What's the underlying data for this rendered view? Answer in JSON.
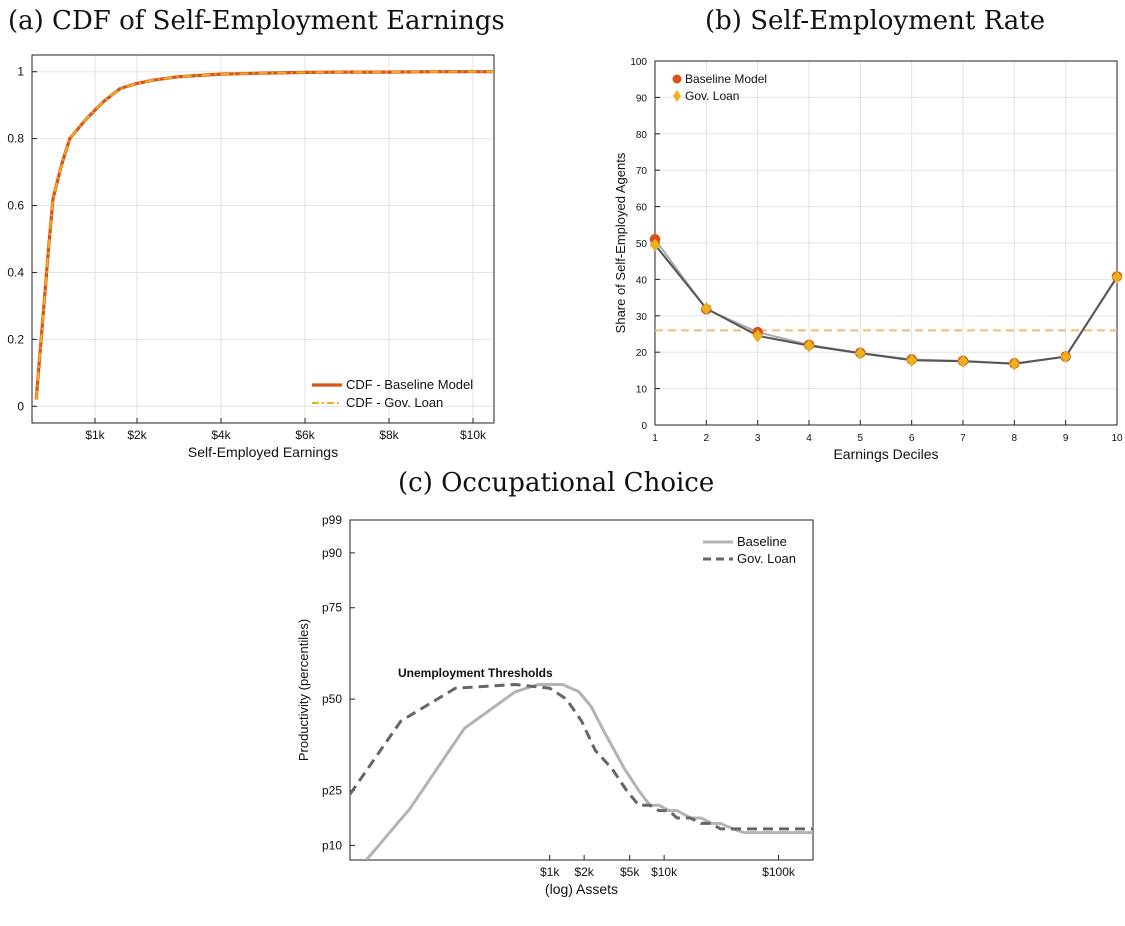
{
  "panel_titles": {
    "a": "(a) CDF of Self-Employment Earnings",
    "b": "(b) Self-Employment Rate",
    "c": "(c) Occupational Choice"
  },
  "chart_data": [
    {
      "id": "a",
      "type": "line",
      "title": "(a) CDF of Self-Employment Earnings",
      "xlabel": "Self-Employed Earnings",
      "ylabel": "",
      "xlim": [
        -500,
        10500
      ],
      "ylim": [
        -0.05,
        1.05
      ],
      "x_ticks": [
        1000,
        2000,
        4000,
        6000,
        8000,
        10000
      ],
      "x_tick_labels": [
        "$1k",
        "$2k",
        "$4k",
        "$6k",
        "$8k",
        "$10k"
      ],
      "y_ticks": [
        0,
        0.2,
        0.4,
        0.6,
        0.8,
        1
      ],
      "y_tick_labels": [
        "0",
        "0.2",
        "0.4",
        "0.6",
        "0.8",
        "1"
      ],
      "grid": true,
      "legend": "bottom-right",
      "series": [
        {
          "name": "CDF - Baseline Model",
          "color": "#d95319",
          "style": "solid",
          "x": [
            -400,
            -250,
            -100,
            0,
            200,
            400,
            800,
            1200,
            1600,
            2000,
            2400,
            3000,
            3600,
            4000,
            5000,
            6000,
            7000,
            8000,
            9000,
            10000,
            10500
          ],
          "y": [
            0.02,
            0.25,
            0.48,
            0.62,
            0.72,
            0.8,
            0.86,
            0.91,
            0.95,
            0.965,
            0.975,
            0.985,
            0.99,
            0.993,
            0.996,
            0.998,
            0.999,
            0.999,
            1.0,
            1.0,
            1.0
          ]
        },
        {
          "name": "CDF - Gov. Loan",
          "color": "#edb120",
          "style": "dash-dot",
          "x": [
            -400,
            -250,
            -100,
            0,
            200,
            400,
            800,
            1200,
            1600,
            2000,
            2400,
            3000,
            3600,
            4000,
            5000,
            6000,
            7000,
            8000,
            9000,
            10000,
            10500
          ],
          "y": [
            0.02,
            0.25,
            0.48,
            0.62,
            0.72,
            0.8,
            0.86,
            0.91,
            0.95,
            0.965,
            0.975,
            0.985,
            0.99,
            0.993,
            0.996,
            0.998,
            0.999,
            0.999,
            1.0,
            1.0,
            1.0
          ]
        }
      ]
    },
    {
      "id": "b",
      "type": "line",
      "title": "(b) Self-Employment Rate",
      "xlabel": "Earnings Deciles",
      "ylabel": "Share of Self-Employed Agents",
      "xlim": [
        1,
        10
      ],
      "ylim": [
        0,
        100
      ],
      "x_ticks": [
        1,
        2,
        3,
        4,
        5,
        6,
        7,
        8,
        9,
        10
      ],
      "x_tick_labels": [
        "1",
        "2",
        "3",
        "4",
        "5",
        "6",
        "7",
        "8",
        "9",
        "10"
      ],
      "y_ticks": [
        0,
        10,
        20,
        30,
        40,
        50,
        60,
        70,
        80,
        90,
        100
      ],
      "y_tick_labels": [
        "0",
        "10",
        "20",
        "30",
        "40",
        "50",
        "60",
        "70",
        "80",
        "90",
        "100"
      ],
      "grid": true,
      "legend": "top-left",
      "reference_line": {
        "y": 26,
        "color": "#f5b871",
        "style": "dashed"
      },
      "series": [
        {
          "name": "Baseline Model",
          "color": "#d95319",
          "line_color": "#aaaaaa",
          "marker": "circle",
          "x": [
            1,
            2,
            3,
            4,
            5,
            6,
            7,
            8,
            9,
            10
          ],
          "y": [
            51,
            31.8,
            25.5,
            22,
            19.8,
            18,
            17.6,
            16.9,
            18.8,
            40.8
          ]
        },
        {
          "name": "Gov. Loan",
          "color": "#edb120",
          "line_color": "#555555",
          "marker": "diamond",
          "x": [
            1,
            2,
            3,
            4,
            5,
            6,
            7,
            8,
            9,
            10
          ],
          "y": [
            49.5,
            32,
            24.5,
            21.8,
            19.7,
            17.8,
            17.5,
            16.8,
            18.8,
            40.6
          ]
        }
      ]
    },
    {
      "id": "c",
      "type": "line",
      "title": "(c) Occupational Choice",
      "xlabel": "(log) Assets",
      "ylabel": "Productivity (percentiles)",
      "xscale": "log",
      "xlim": [
        18,
        200000
      ],
      "ylim": [
        6,
        99
      ],
      "x_ticks": [
        1000,
        2000,
        5000,
        10000,
        100000
      ],
      "x_tick_labels": [
        "$1k",
        "$2k",
        "$5k",
        "$10k",
        "$100k"
      ],
      "y_ticks": [
        10,
        25,
        50,
        75,
        90,
        99
      ],
      "y_tick_labels": [
        "p10",
        "p25",
        "p50",
        "p75",
        "p90",
        "p99"
      ],
      "grid": false,
      "legend": "top-right",
      "annotation": "Unemployment Thresholds",
      "series": [
        {
          "name": "Baseline",
          "color": "#b3b3b3",
          "style": "solid",
          "x": [
            25,
            60,
            180,
            500,
            800,
            1300,
            1800,
            2300,
            3000,
            4500,
            6000,
            7500,
            9000,
            11000,
            13000,
            17000,
            21000,
            26000,
            31000,
            40000,
            50000,
            200000
          ],
          "y": [
            6,
            20,
            42,
            52,
            54,
            54,
            52,
            48,
            41,
            31,
            25,
            21,
            21,
            19.5,
            19.5,
            17.5,
            17.5,
            16,
            16,
            14.5,
            13.5,
            13.5
          ]
        },
        {
          "name": "Gov. Loan",
          "color": "#666666",
          "style": "dashed",
          "x": [
            18,
            50,
            150,
            500,
            1000,
            1400,
            1900,
            2500,
            3500,
            4700,
            6000,
            7500,
            9000,
            11000,
            13000,
            17000,
            21000,
            26000,
            31000,
            40000,
            200000
          ],
          "y": [
            24,
            44,
            53,
            54,
            53,
            50,
            44,
            36,
            31,
            25,
            21,
            21,
            19.5,
            19.5,
            17.5,
            17.5,
            16,
            16,
            14.5,
            14.5,
            14.5
          ]
        }
      ]
    }
  ]
}
